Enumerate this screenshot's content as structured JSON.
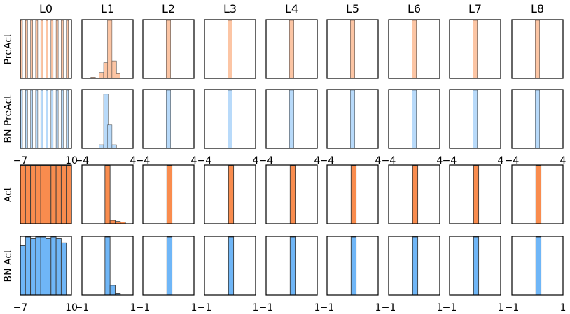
{
  "chart_data": {
    "type": "histogram-grid",
    "columns": [
      "L0",
      "L1",
      "L2",
      "L3",
      "L4",
      "L5",
      "L6",
      "L7",
      "L8"
    ],
    "rows": [
      {
        "label": "PreAct",
        "color": "#fcc5a4",
        "hists": [
          {
            "xlim": [
              -7,
              10
            ],
            "ymax": 1,
            "bins": [
              [
                -7,
                0.7,
                1
              ],
              [
                -5.3,
                0.7,
                1
              ],
              [
                -3.6,
                0.7,
                1
              ],
              [
                -1.9,
                0.7,
                1
              ],
              [
                -0.2,
                0.7,
                1
              ],
              [
                1.5,
                0.7,
                1
              ],
              [
                3.2,
                0.7,
                1
              ],
              [
                4.9,
                0.7,
                1
              ],
              [
                6.6,
                0.7,
                1
              ],
              [
                8.3,
                0.7,
                1
              ]
            ]
          },
          {
            "xlim": [
              -4,
              4
            ],
            "ymax": 1,
            "bins": [
              [
                -2.6,
                0.7,
                0.02
              ],
              [
                -1.3,
                0.7,
                0.1
              ],
              [
                -0.6,
                0.7,
                0.27
              ],
              [
                0,
                0.7,
                1
              ],
              [
                0.7,
                0.7,
                0.3
              ],
              [
                1.3,
                0.7,
                0.08
              ]
            ]
          },
          {
            "xlim": [
              -4,
              4
            ],
            "ymax": 1,
            "bins": [
              [
                -0.35,
                0.7,
                1
              ]
            ]
          },
          {
            "xlim": [
              -4,
              4
            ],
            "ymax": 1,
            "bins": [
              [
                -0.35,
                0.7,
                1
              ]
            ]
          },
          {
            "xlim": [
              -4,
              4
            ],
            "ymax": 1,
            "bins": [
              [
                -0.35,
                0.7,
                1
              ]
            ]
          },
          {
            "xlim": [
              -4,
              4
            ],
            "ymax": 1,
            "bins": [
              [
                -0.35,
                0.7,
                1
              ]
            ]
          },
          {
            "xlim": [
              -4,
              4
            ],
            "ymax": 1,
            "bins": [
              [
                -0.35,
                0.7,
                1
              ]
            ]
          },
          {
            "xlim": [
              -4,
              4
            ],
            "ymax": 1,
            "bins": [
              [
                -0.35,
                0.7,
                1
              ]
            ]
          },
          {
            "xlim": [
              -4,
              4
            ],
            "ymax": 1,
            "bins": [
              [
                -0.35,
                0.7,
                1
              ]
            ]
          }
        ]
      },
      {
        "label": "BN PreAct",
        "color": "#b8dafa",
        "hists": [
          {
            "xlim": [
              -7,
              10
            ],
            "ymax": 1,
            "bins": [
              [
                -7,
                0.7,
                1
              ],
              [
                -5.3,
                0.7,
                1
              ],
              [
                -3.6,
                0.7,
                1
              ],
              [
                -1.9,
                0.7,
                1
              ],
              [
                -0.2,
                0.7,
                1
              ],
              [
                1.5,
                0.7,
                1
              ],
              [
                3.2,
                0.7,
                1
              ],
              [
                4.9,
                0.7,
                1
              ],
              [
                6.6,
                0.7,
                1
              ],
              [
                8.3,
                0.7,
                1
              ]
            ]
          },
          {
            "xlim": [
              -4,
              4
            ],
            "ymax": 1,
            "bins": [
              [
                -1.3,
                0.7,
                0.06
              ],
              [
                -0.6,
                0.7,
                0.93
              ],
              [
                0,
                0.7,
                0.4
              ],
              [
                0.7,
                0.7,
                0.06
              ]
            ]
          },
          {
            "xlim": [
              -4,
              4
            ],
            "ymax": 1,
            "bins": [
              [
                -0.35,
                0.7,
                1
              ]
            ]
          },
          {
            "xlim": [
              -4,
              4
            ],
            "ymax": 1,
            "bins": [
              [
                -0.35,
                0.7,
                1
              ]
            ]
          },
          {
            "xlim": [
              -4,
              4
            ],
            "ymax": 1,
            "bins": [
              [
                -0.35,
                0.7,
                1
              ]
            ]
          },
          {
            "xlim": [
              -4,
              4
            ],
            "ymax": 1,
            "bins": [
              [
                -0.35,
                0.7,
                1
              ]
            ]
          },
          {
            "xlim": [
              -4,
              4
            ],
            "ymax": 1,
            "bins": [
              [
                -0.35,
                0.7,
                1
              ]
            ]
          },
          {
            "xlim": [
              -4,
              4
            ],
            "ymax": 1,
            "bins": [
              [
                -0.35,
                0.7,
                1
              ]
            ]
          },
          {
            "xlim": [
              -4,
              4
            ],
            "ymax": 1,
            "bins": [
              [
                -0.35,
                0.7,
                1
              ]
            ]
          }
        ],
        "xticks": [
          [
            "-7",
            "10"
          ],
          [
            "-4",
            "4"
          ],
          [
            "-4",
            "4"
          ],
          [
            "-4",
            "4"
          ],
          [
            "-4",
            "4"
          ],
          [
            "-4",
            "4"
          ],
          [
            "-4",
            "4"
          ],
          [
            "-4",
            "4"
          ],
          [
            "-4",
            "4"
          ]
        ]
      },
      {
        "label": "Act",
        "color": "#f98c4e",
        "hists": [
          {
            "xlim": [
              -7,
              10
            ],
            "ymax": 1,
            "bins": [
              [
                -7,
                1.7,
                1
              ],
              [
                -5.3,
                1.7,
                1
              ],
              [
                -3.6,
                1.7,
                1
              ],
              [
                -1.9,
                1.7,
                1
              ],
              [
                -0.2,
                1.7,
                1
              ],
              [
                1.5,
                1.7,
                1
              ],
              [
                3.2,
                1.7,
                1
              ],
              [
                4.9,
                1.7,
                1
              ],
              [
                6.6,
                1.7,
                1
              ],
              [
                8.3,
                1.7,
                1
              ]
            ]
          },
          {
            "xlim": [
              -1,
              1
            ],
            "ymax": 1,
            "bins": [
              [
                -0.1,
                0.2,
                1
              ],
              [
                0.1,
                0.2,
                0.06
              ],
              [
                0.3,
                0.2,
                0.04
              ],
              [
                0.5,
                0.2,
                0.03
              ]
            ]
          },
          {
            "xlim": [
              -1,
              1
            ],
            "ymax": 1,
            "bins": [
              [
                -0.06,
                0.2,
                1
              ]
            ]
          },
          {
            "xlim": [
              -1,
              1
            ],
            "ymax": 1,
            "bins": [
              [
                -0.06,
                0.2,
                1
              ]
            ]
          },
          {
            "xlim": [
              -1,
              1
            ],
            "ymax": 1,
            "bins": [
              [
                -0.06,
                0.2,
                1
              ]
            ]
          },
          {
            "xlim": [
              -1,
              1
            ],
            "ymax": 1,
            "bins": [
              [
                -0.06,
                0.2,
                1
              ]
            ]
          },
          {
            "xlim": [
              -1,
              1
            ],
            "ymax": 1,
            "bins": [
              [
                -0.06,
                0.2,
                1
              ]
            ]
          },
          {
            "xlim": [
              -1,
              1
            ],
            "ymax": 1,
            "bins": [
              [
                -0.06,
                0.2,
                1
              ]
            ]
          },
          {
            "xlim": [
              -1,
              1
            ],
            "ymax": 1,
            "bins": [
              [
                -0.06,
                0.2,
                1
              ]
            ]
          }
        ]
      },
      {
        "label": "BN Act",
        "color": "#6fb6f7",
        "hists": [
          {
            "xlim": [
              -7,
              10
            ],
            "ymax": 1,
            "bins": [
              [
                -7,
                1.7,
                0.85
              ],
              [
                -5.3,
                1.7,
                1
              ],
              [
                -3.6,
                1.7,
                0.97
              ],
              [
                -1.9,
                1.7,
                1
              ],
              [
                -0.2,
                1.7,
                1
              ],
              [
                1.5,
                1.7,
                0.97
              ],
              [
                3.2,
                1.7,
                1
              ],
              [
                4.9,
                1.7,
                0.97
              ],
              [
                6.6,
                1.7,
                0.9
              ]
            ]
          },
          {
            "xlim": [
              -1,
              1
            ],
            "ymax": 1,
            "bins": [
              [
                -0.1,
                0.2,
                1
              ],
              [
                0.1,
                0.2,
                0.17
              ],
              [
                0.3,
                0.2,
                0.03
              ]
            ]
          },
          {
            "xlim": [
              -1,
              1
            ],
            "ymax": 1,
            "bins": [
              [
                -0.06,
                0.2,
                1
              ]
            ]
          },
          {
            "xlim": [
              -1,
              1
            ],
            "ymax": 1,
            "bins": [
              [
                -0.06,
                0.2,
                1
              ]
            ]
          },
          {
            "xlim": [
              -1,
              1
            ],
            "ymax": 1,
            "bins": [
              [
                -0.06,
                0.2,
                1
              ]
            ]
          },
          {
            "xlim": [
              -1,
              1
            ],
            "ymax": 1,
            "bins": [
              [
                -0.06,
                0.2,
                1
              ]
            ]
          },
          {
            "xlim": [
              -1,
              1
            ],
            "ymax": 1,
            "bins": [
              [
                -0.06,
                0.2,
                1
              ]
            ]
          },
          {
            "xlim": [
              -1,
              1
            ],
            "ymax": 1,
            "bins": [
              [
                -0.06,
                0.2,
                1
              ]
            ]
          },
          {
            "xlim": [
              -1,
              1
            ],
            "ymax": 1,
            "bins": [
              [
                -0.06,
                0.2,
                1
              ]
            ]
          }
        ],
        "xticks": [
          [
            "-7",
            "10"
          ],
          [
            "-1",
            "1"
          ],
          [
            "-1",
            "1"
          ],
          [
            "-1",
            "1"
          ],
          [
            "-1",
            "1"
          ],
          [
            "-1",
            "1"
          ],
          [
            "-1",
            "1"
          ],
          [
            "-1",
            "1"
          ],
          [
            "-1",
            "1"
          ]
        ]
      }
    ]
  }
}
